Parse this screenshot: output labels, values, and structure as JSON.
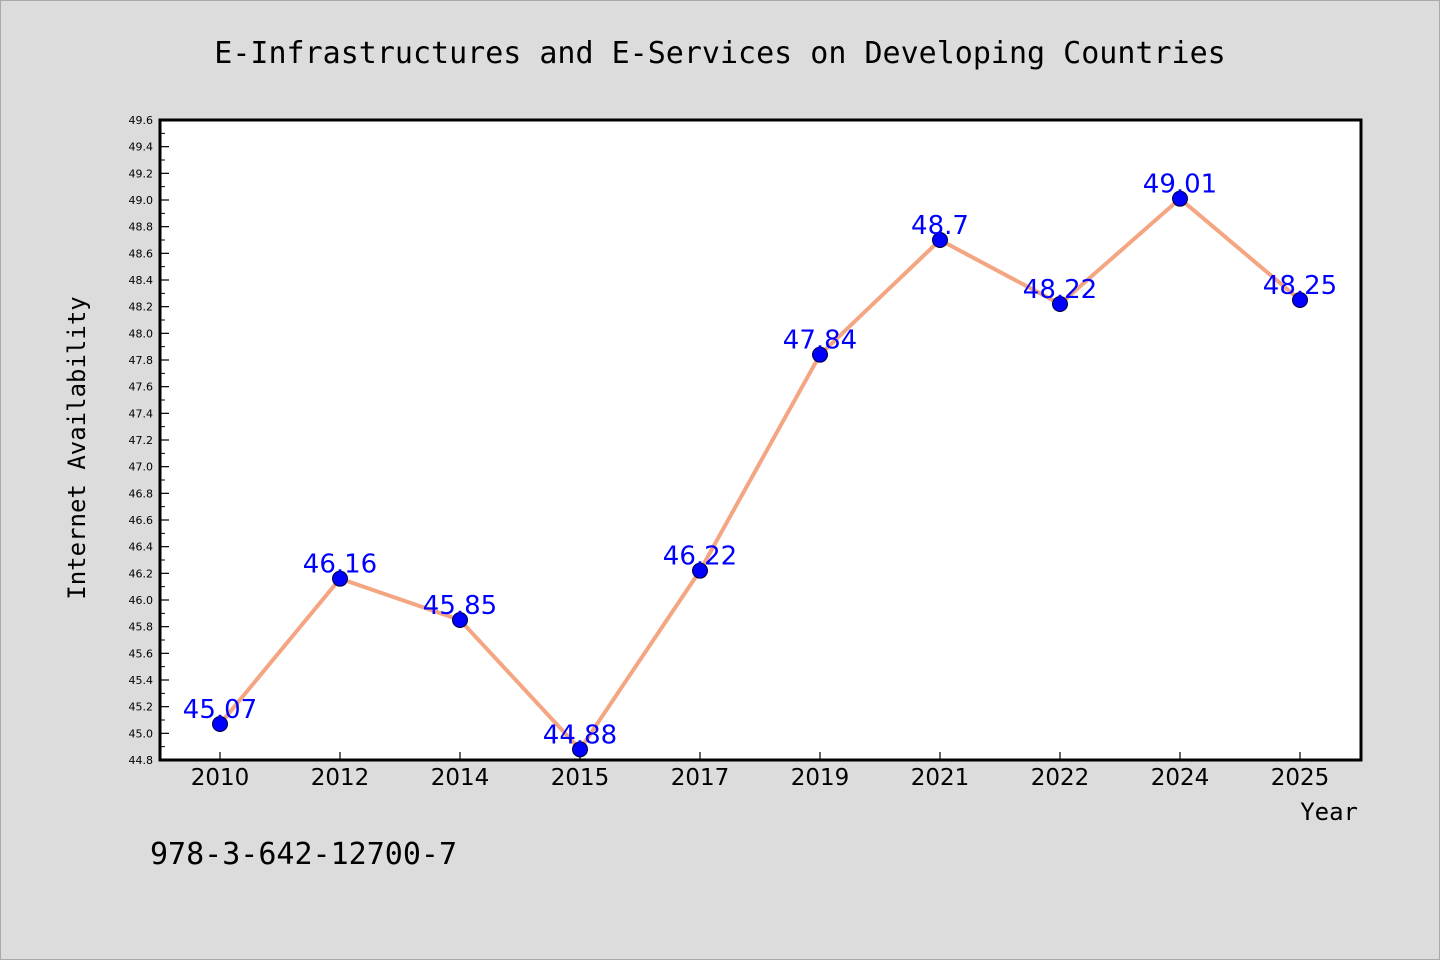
{
  "chart_data": {
    "type": "line",
    "title": "E-Infrastructures and E-Services on Developing Countries",
    "xlabel": "Year",
    "ylabel": "Internet Availability",
    "categories": [
      "2010",
      "2012",
      "2014",
      "2015",
      "2017",
      "2019",
      "2021",
      "2022",
      "2024",
      "2025"
    ],
    "series": [
      {
        "values": [
          45.07,
          46.16,
          45.85,
          44.88,
          46.22,
          47.84,
          48.7,
          48.22,
          49.01,
          48.25
        ],
        "data_labels": [
          "45.07",
          "46.16",
          "45.85",
          "44.88",
          "46.22",
          "47.84",
          "48.7",
          "48.22",
          "49.01",
          "48.25"
        ],
        "line_color": "#f4a582",
        "marker_color": "#0000ff",
        "label_color": "#0000ff"
      }
    ],
    "ylim": [
      44.8,
      49.6
    ],
    "yticks": [
      "44.8",
      "45.0",
      "45.2",
      "45.4",
      "45.6",
      "45.8",
      "46.0",
      "46.2",
      "46.4",
      "46.6",
      "46.8",
      "47.0",
      "47.2",
      "47.4",
      "47.6",
      "47.8",
      "48.0",
      "48.2",
      "48.4",
      "48.6",
      "48.8",
      "49.0",
      "49.2",
      "49.4",
      "49.6"
    ],
    "grid": false,
    "legend": "none"
  },
  "footer": {
    "isbn": "978-3-642-12700-7"
  },
  "colors": {
    "background": "#dcdcdc",
    "plot_background": "#ffffff",
    "axis": "#000000"
  }
}
